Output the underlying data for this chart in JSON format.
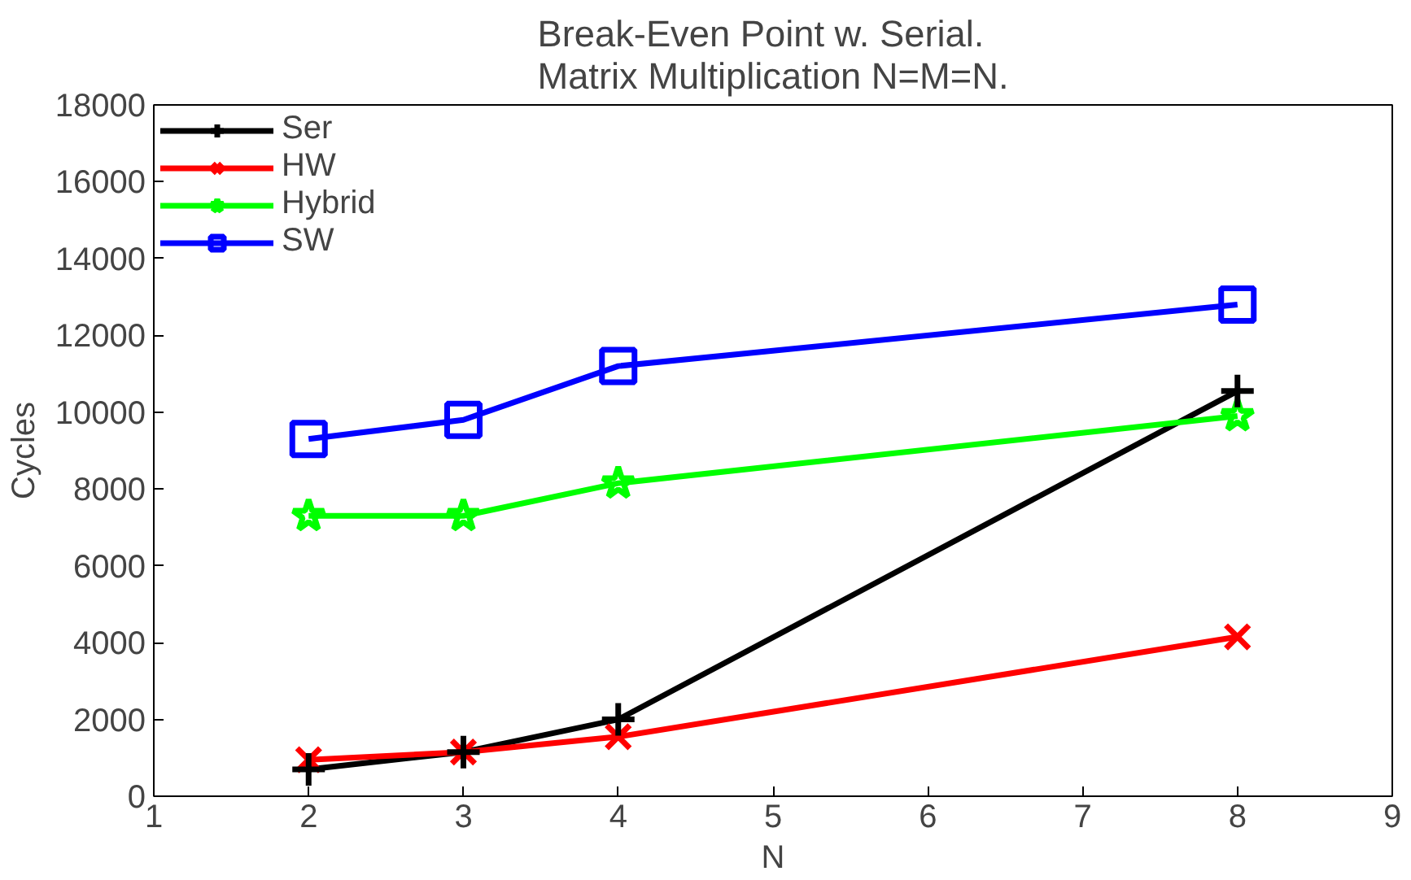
{
  "chart_data": {
    "type": "line",
    "title": "Break-Even Point w. Serial.\nMatrix Multiplication N=M=N.",
    "xlabel": "N",
    "ylabel": "Cycles",
    "x": [
      2,
      3,
      4,
      8
    ],
    "series": [
      {
        "name": "Ser",
        "color": "#000000",
        "marker": "cross",
        "values": [
          700,
          1150,
          2000,
          10550
        ]
      },
      {
        "name": "HW",
        "color": "#ff0000",
        "marker": "x",
        "values": [
          950,
          1150,
          1550,
          4150
        ]
      },
      {
        "name": "Hybrid",
        "color": "#00ff00",
        "marker": "star",
        "values": [
          7300,
          7300,
          8150,
          9900
        ]
      },
      {
        "name": "SW",
        "color": "#0000ff",
        "marker": "square",
        "values": [
          9300,
          9800,
          11200,
          12800
        ]
      }
    ],
    "xlim": [
      1,
      9
    ],
    "xticks": [
      1,
      2,
      3,
      4,
      5,
      6,
      7,
      8,
      9
    ],
    "ylim": [
      0,
      18000
    ],
    "yticks": [
      0,
      2000,
      4000,
      6000,
      8000,
      10000,
      12000,
      14000,
      16000,
      18000
    ],
    "grid": false,
    "legend": "top left",
    "line_style": "solid"
  }
}
